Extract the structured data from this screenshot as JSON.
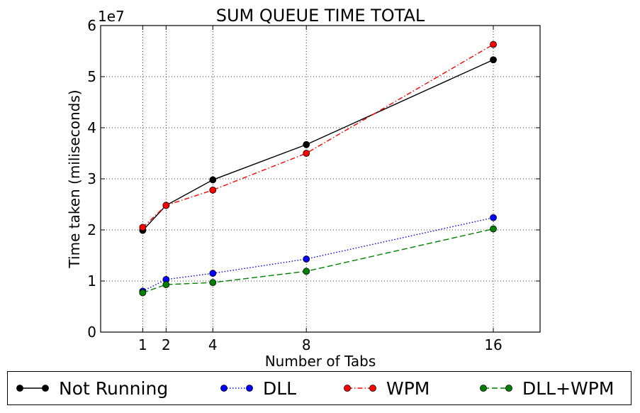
{
  "chart_data": {
    "type": "line",
    "title": "SUM QUEUE TIME TOTAL",
    "xlabel": "Number of Tabs",
    "ylabel": "Time taken (miliseconds)",
    "y_offset_label": "1e7",
    "x": [
      1,
      2,
      4,
      8,
      16
    ],
    "xlim": [
      -0.8,
      18
    ],
    "ylim": [
      0,
      6
    ],
    "x_ticks": [
      "1",
      "2",
      "4",
      "8",
      "16"
    ],
    "y_ticks": [
      "0",
      "1",
      "2",
      "3",
      "4",
      "5",
      "6"
    ],
    "grid": true,
    "legend_position": "bottom",
    "series": [
      {
        "name": "Not Running",
        "color": "#000000",
        "linestyle": "solid",
        "values": [
          1.99,
          2.48,
          2.98,
          3.67,
          5.33
        ]
      },
      {
        "name": "DLL",
        "color": "#0000ff",
        "linestyle": "dotted",
        "values": [
          0.8,
          1.03,
          1.15,
          1.43,
          2.24
        ]
      },
      {
        "name": "WPM",
        "color": "#ff0000",
        "linestyle": "dashdot",
        "values": [
          2.05,
          2.48,
          2.78,
          3.5,
          5.63
        ]
      },
      {
        "name": "DLL+WPM",
        "color": "#008000",
        "linestyle": "dashed",
        "values": [
          0.77,
          0.93,
          0.97,
          1.19,
          2.02
        ]
      }
    ]
  }
}
